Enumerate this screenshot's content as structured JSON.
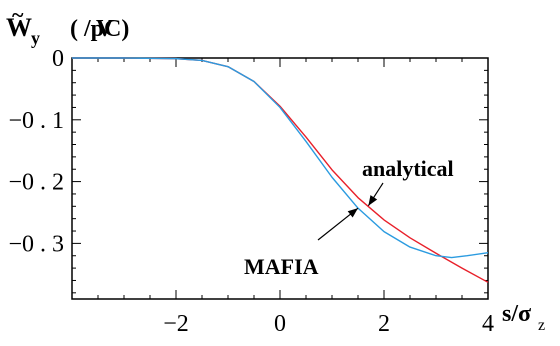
{
  "chart_data": {
    "type": "line",
    "ylabel": {
      "main": "W",
      "subscript": "y",
      "units": "( /pC)",
      "overlay": "V"
    },
    "xlabel": {
      "main": "s/σ",
      "subscript": "z"
    },
    "xlim": [
      -4,
      4
    ],
    "ylim": [
      -0.39,
      0
    ],
    "x_ticks": [
      {
        "value": -2,
        "label": "−2"
      },
      {
        "value": 0,
        "label": "0"
      },
      {
        "value": 2,
        "label": "2"
      },
      {
        "value": 4,
        "label": "4"
      }
    ],
    "y_ticks": [
      {
        "value": 0,
        "label": "0"
      },
      {
        "value": -0.1,
        "label": "−0 .  1"
      },
      {
        "value": -0.2,
        "label": "−0 .  2"
      },
      {
        "value": -0.3,
        "label": "−0 .  3"
      }
    ],
    "series": [
      {
        "name": "analytical",
        "color": "#e8202a",
        "points": [
          [
            -4,
            0.0
          ],
          [
            -3,
            0.0
          ],
          [
            -2,
            -0.001
          ],
          [
            -1.5,
            -0.004
          ],
          [
            -1,
            -0.014
          ],
          [
            -0.5,
            -0.038
          ],
          [
            0,
            -0.078
          ],
          [
            0.5,
            -0.128
          ],
          [
            1,
            -0.181
          ],
          [
            1.5,
            -0.226
          ],
          [
            2,
            -0.262
          ],
          [
            2.5,
            -0.291
          ],
          [
            3,
            -0.316
          ],
          [
            3.5,
            -0.34
          ],
          [
            4,
            -0.363
          ]
        ]
      },
      {
        "name": "MAFIA",
        "color": "#2b9be0",
        "points": [
          [
            -4,
            0.0
          ],
          [
            -3,
            0.0
          ],
          [
            -2,
            -0.001
          ],
          [
            -1.5,
            -0.004
          ],
          [
            -1,
            -0.014
          ],
          [
            -0.5,
            -0.038
          ],
          [
            0,
            -0.08
          ],
          [
            0.5,
            -0.135
          ],
          [
            1,
            -0.193
          ],
          [
            1.5,
            -0.243
          ],
          [
            2,
            -0.281
          ],
          [
            2.5,
            -0.306
          ],
          [
            3,
            -0.32
          ],
          [
            3.3,
            -0.323
          ],
          [
            3.6,
            -0.32
          ],
          [
            4,
            -0.315
          ]
        ]
      }
    ],
    "annotations": [
      {
        "text": "analytical",
        "series": "analytical",
        "arrow_to": [
          1.7,
          -0.239
        ]
      },
      {
        "text": "MAFIA",
        "series": "MAFIA",
        "arrow_to": [
          1.5,
          -0.243
        ]
      }
    ]
  }
}
